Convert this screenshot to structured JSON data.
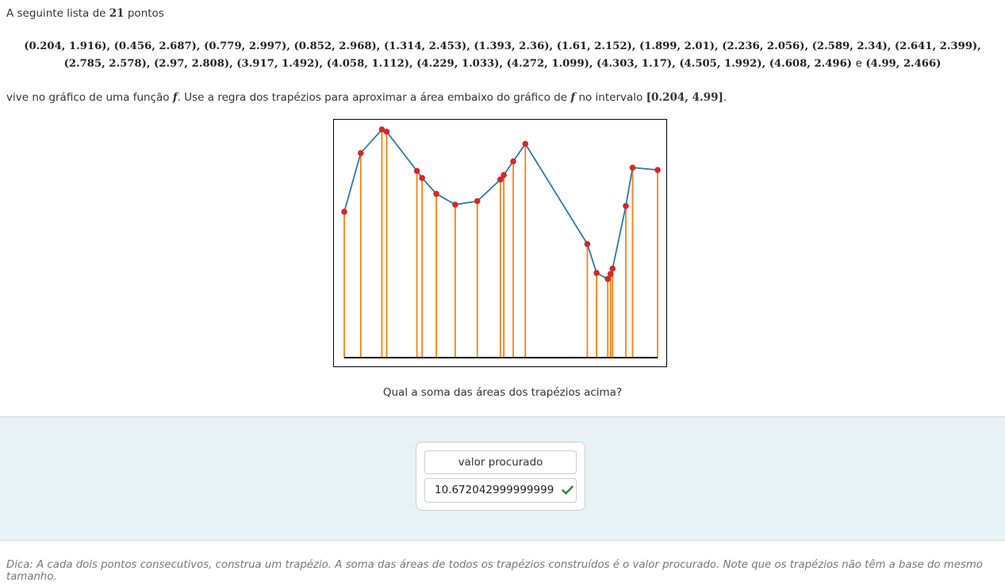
{
  "intro": {
    "prefix": "A seguinte lista de",
    "count": "21",
    "suffix": "pontos"
  },
  "points_line1": [
    "(0.204, 1.916)",
    "(0.456, 2.687)",
    "(0.779, 2.997)",
    "(0.852, 2.968)",
    "(1.314, 2.453)",
    "(1.393, 2.36)",
    "(1.61, 2.152)",
    "(1.899, 2.01)",
    "(2.236, 2.056)",
    "(2.589, 2.34)",
    "(2.641, 2.399)"
  ],
  "points_line2": [
    "(2.785, 2.578)",
    "(2.97, 2.808)",
    "(3.917, 1.492)",
    "(4.058, 1.112)",
    "(4.229, 1.033)",
    "(4.272, 1.099)",
    "(4.303, 1.17)",
    "(4.505, 1.992)",
    "(4.608, 2.496)"
  ],
  "points_last": "(4.99, 2.466)",
  "sep_and": "e",
  "question": {
    "part1": "vive no gráfico de uma função",
    "f": "f",
    "part2": ". Use a regra dos trapézios para aproximar a área embaixo do gráfico de",
    "part3": "no intervalo",
    "interval": "[0.204, 4.99]",
    "end": "."
  },
  "chart_data": {
    "type": "line",
    "x": [
      0.204,
      0.456,
      0.779,
      0.852,
      1.314,
      1.393,
      1.61,
      1.899,
      2.236,
      2.589,
      2.641,
      2.785,
      2.97,
      3.917,
      4.058,
      4.229,
      4.272,
      4.303,
      4.505,
      4.608,
      4.99
    ],
    "y": [
      1.916,
      2.687,
      2.997,
      2.968,
      2.453,
      2.36,
      2.152,
      2.01,
      2.056,
      2.34,
      2.399,
      2.578,
      2.808,
      1.492,
      1.112,
      1.033,
      1.099,
      1.17,
      1.992,
      2.496,
      2.466
    ],
    "xlim": [
      0.204,
      4.99
    ],
    "ylim": [
      0,
      3.0
    ],
    "grid": false,
    "line_color": "#2878b5",
    "point_color": "#d62728",
    "stem_color": "#ff7f0e",
    "baseline_color": "#000000"
  },
  "subquestion": "Qual a soma das áreas dos trapézios acima?",
  "answer": {
    "label": "valor procurado",
    "value": "10.672042999999999",
    "status": "check-icon",
    "status_color": "#3c8a3c"
  },
  "hint": "Dica: A cada dois pontos consecutivos, construa um trapézio. A soma das áreas de todos os trapézios construídos é o valor procurado. Note que os trapézios não têm a base do mesmo tamanho."
}
